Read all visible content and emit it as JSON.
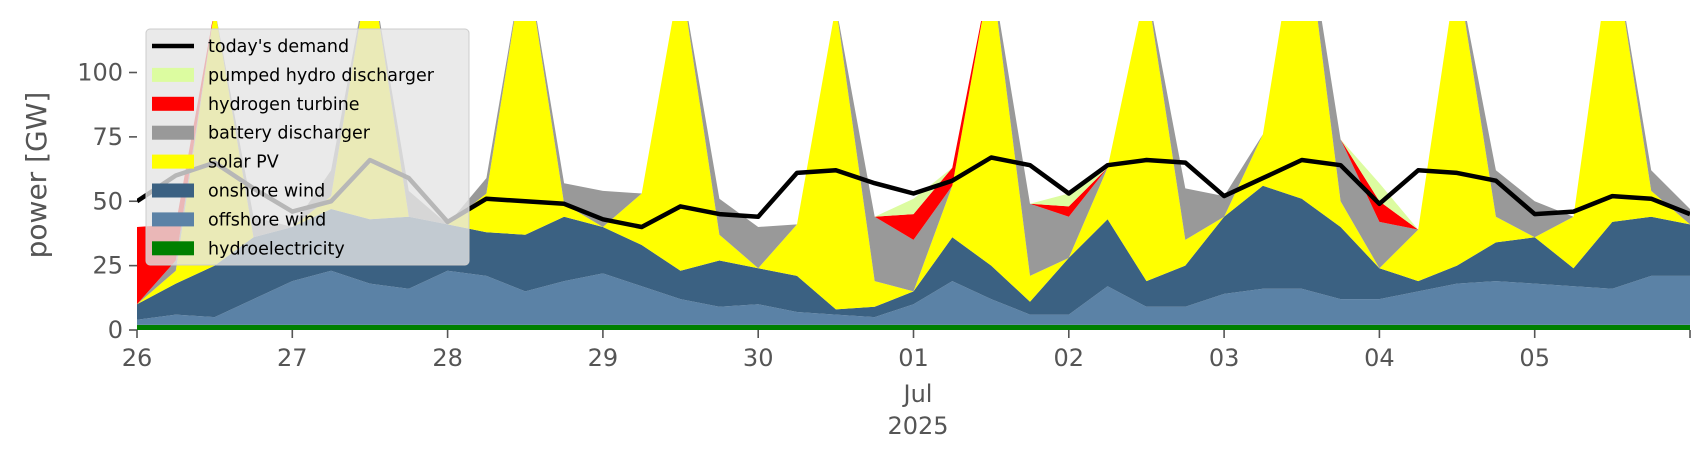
{
  "chart_data": {
    "type": "area",
    "ylabel": "power [GW]",
    "ylim": [
      0,
      120
    ],
    "xlim": [
      "2025-06-26",
      "2025-07-06"
    ],
    "y_ticks": [
      0,
      25,
      50,
      75,
      100
    ],
    "x_ticks": [
      "2025-06-26",
      "2025-06-27",
      "2025-06-28",
      "2025-06-29",
      "2025-06-30",
      "2025-07-01",
      "2025-07-02",
      "2025-07-03",
      "2025-07-04",
      "2025-07-05"
    ],
    "x_tick_labels": [
      "26",
      "27",
      "28",
      "29",
      "30",
      "01",
      "02",
      "03",
      "04",
      "05"
    ],
    "x_sublabels": [
      "Jul",
      "2025"
    ],
    "grid": false,
    "legend_position": "top-left",
    "times": [
      "2025-06-26 00:00",
      "2025-06-26 06:00",
      "2025-06-26 12:00",
      "2025-06-26 18:00",
      "2025-06-27 00:00",
      "2025-06-27 06:00",
      "2025-06-27 12:00",
      "2025-06-27 18:00",
      "2025-06-28 00:00",
      "2025-06-28 06:00",
      "2025-06-28 12:00",
      "2025-06-28 18:00",
      "2025-06-29 00:00",
      "2025-06-29 06:00",
      "2025-06-29 12:00",
      "2025-06-29 18:00",
      "2025-06-30 00:00",
      "2025-06-30 06:00",
      "2025-06-30 12:00",
      "2025-06-30 18:00",
      "2025-07-01 00:00",
      "2025-07-01 06:00",
      "2025-07-01 12:00",
      "2025-07-01 18:00",
      "2025-07-02 00:00",
      "2025-07-02 06:00",
      "2025-07-02 12:00",
      "2025-07-02 18:00",
      "2025-07-03 00:00",
      "2025-07-03 06:00",
      "2025-07-03 12:00",
      "2025-07-03 18:00",
      "2025-07-04 00:00",
      "2025-07-04 06:00",
      "2025-07-04 12:00",
      "2025-07-04 18:00",
      "2025-07-05 00:00",
      "2025-07-05 06:00",
      "2025-07-05 12:00",
      "2025-07-05 18:00",
      "2025-07-06 00:00"
    ],
    "series": [
      {
        "name": "hydroelectricity",
        "color": "#008000",
        "values": [
          2,
          2,
          2,
          2,
          2,
          2,
          2,
          2,
          2,
          2,
          2,
          2,
          2,
          2,
          2,
          2,
          2,
          2,
          2,
          2,
          2,
          2,
          2,
          2,
          2,
          2,
          2,
          2,
          2,
          2,
          2,
          2,
          2,
          2,
          2,
          2,
          2,
          2,
          2,
          2,
          2
        ]
      },
      {
        "name": "offshore wind",
        "color": "#5b82a6",
        "values": [
          2,
          4,
          3,
          10,
          17,
          21,
          16,
          14,
          21,
          19,
          13,
          17,
          20,
          15,
          10,
          7,
          8,
          5,
          4,
          3,
          8,
          17,
          10,
          4,
          4,
          15,
          7,
          7,
          12,
          14,
          14,
          10,
          10,
          13,
          16,
          17,
          16,
          15,
          14,
          19,
          19
        ]
      },
      {
        "name": "onshore wind",
        "color": "#3b6182",
        "values": [
          6,
          12,
          20,
          24,
          21,
          24,
          25,
          28,
          18,
          17,
          22,
          25,
          18,
          16,
          11,
          18,
          14,
          14,
          2,
          4,
          5,
          17,
          13,
          5,
          22,
          26,
          10,
          16,
          30,
          40,
          35,
          28,
          12,
          4,
          7,
          15,
          18,
          7,
          26,
          23,
          20
        ]
      },
      {
        "name": "solar PV",
        "color": "#ffff00",
        "values": [
          0,
          5,
          100,
          0,
          0,
          5,
          100,
          0,
          0,
          15,
          110,
          5,
          0,
          20,
          115,
          10,
          0,
          20,
          118,
          10,
          0,
          20,
          115,
          10,
          0,
          20,
          115,
          10,
          0,
          20,
          118,
          10,
          0,
          20,
          115,
          10,
          0,
          20,
          110,
          10,
          0
        ]
      },
      {
        "name": "battery discharger",
        "color": "#999999",
        "values": [
          0,
          4,
          0,
          8,
          0,
          10,
          0,
          10,
          0,
          6,
          0,
          8,
          14,
          0,
          0,
          14,
          16,
          0,
          0,
          25,
          20,
          0,
          0,
          28,
          16,
          0,
          0,
          20,
          8,
          0,
          0,
          24,
          18,
          0,
          0,
          18,
          14,
          0,
          0,
          8,
          6
        ]
      },
      {
        "name": "hydrogen turbine",
        "color": "#ff0000",
        "values": [
          30,
          14,
          0,
          0,
          0,
          0,
          0,
          0,
          0,
          0,
          0,
          0,
          0,
          0,
          0,
          0,
          0,
          0,
          0,
          0,
          10,
          7,
          0,
          0,
          4,
          0,
          0,
          0,
          0,
          0,
          0,
          0,
          8,
          0,
          0,
          0,
          0,
          0,
          0,
          0,
          0
        ]
      },
      {
        "name": "pumped hydro discharger",
        "color": "#dcfca0",
        "values": [
          0,
          0,
          0,
          0,
          0,
          0,
          0,
          0,
          0,
          0,
          0,
          0,
          0,
          0,
          0,
          0,
          0,
          0,
          0,
          0,
          6,
          0,
          0,
          0,
          5,
          0,
          0,
          0,
          0,
          0,
          0,
          0,
          7,
          0,
          0,
          0,
          0,
          0,
          0,
          0,
          0
        ]
      }
    ],
    "demand": {
      "name": "today's demand",
      "color": "#000000",
      "values": [
        50,
        60,
        65,
        55,
        46,
        50,
        66,
        59,
        42,
        51,
        50,
        49,
        43,
        40,
        48,
        45,
        44,
        61,
        62,
        57,
        53,
        58,
        67,
        64,
        53,
        64,
        66,
        65,
        52,
        59,
        66,
        64,
        49,
        62,
        61,
        58,
        45,
        46,
        52,
        51,
        45
      ]
    }
  }
}
